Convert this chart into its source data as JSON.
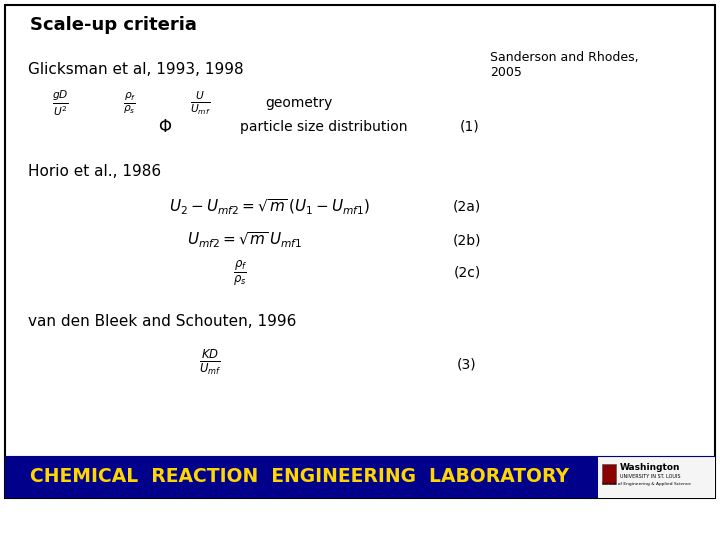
{
  "title": "Scale-up criteria",
  "bg_color": "#ffffff",
  "border_color": "#000000",
  "footer_bg": "#00008B",
  "footer_text": "CHEMICAL  REACTION  ENGINEERING  LABORATORY",
  "footer_text_color": "#FFD700",
  "footer_fontsize": 13.5,
  "title_fontsize": 13,
  "author1": "Glicksman et al, 1993, 1998",
  "author3": "Horio et al., 1986",
  "author4": "van den Bleek and Schouten, 1996",
  "eq1a": "$\\frac{gD}{U^2}$",
  "eq1b": "$\\frac{\\rho_f}{\\rho_s}$",
  "eq1c": "$\\frac{U}{U_{mf}}$",
  "eq1d": "geometry",
  "eq1e": "$\\Phi$",
  "eq1f": "particle size distribution",
  "eq1g": "(1)",
  "eq2a": "$U_2 - U_{mf2} = \\sqrt{m}\\,(U_1 - U_{mf1})$",
  "eq2a_label": "(2a)",
  "eq2b": "$U_{mf2} = \\sqrt{m}\\,U_{mf1}$",
  "eq2b_label": "(2b)",
  "eq2c": "$\\frac{\\rho_f}{\\rho_s}$",
  "eq2c_label": "(2c)",
  "eq3": "$\\frac{KD}{U_{mf}}$",
  "eq3_label": "(3)",
  "sanderson_line1": "Sanderson and Rhodes,",
  "sanderson_line2": "2005"
}
